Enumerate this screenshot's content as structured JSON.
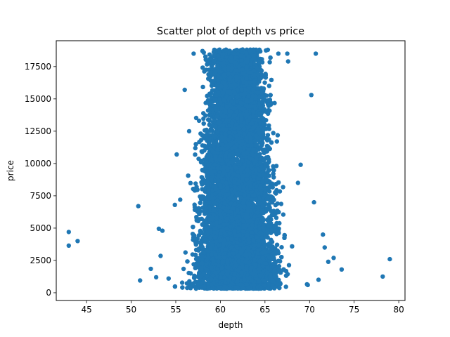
{
  "chart_data": {
    "type": "scatter",
    "title": "Scatter plot of depth vs price",
    "xlabel": "depth",
    "ylabel": "price",
    "xlim": [
      41.6,
      80.7
    ],
    "ylim": [
      -600,
      19500
    ],
    "xticks": [
      45,
      50,
      55,
      60,
      65,
      70,
      75,
      80
    ],
    "xtick_labels": [
      "45",
      "50",
      "55",
      "60",
      "65",
      "70",
      "75",
      "80"
    ],
    "yticks": [
      0,
      2500,
      5000,
      7500,
      10000,
      12500,
      15000,
      17500
    ],
    "ytick_labels": [
      "0",
      "2500",
      "5000",
      "7500",
      "10000",
      "12500",
      "15000",
      "17500"
    ],
    "grid": false,
    "marker_color": "#1f77b4",
    "outliers": [
      {
        "x": 43.0,
        "y": 4700
      },
      {
        "x": 43.0,
        "y": 3650
      },
      {
        "x": 44.0,
        "y": 4000
      },
      {
        "x": 50.8,
        "y": 6700
      },
      {
        "x": 51.0,
        "y": 950
      },
      {
        "x": 52.2,
        "y": 1850
      },
      {
        "x": 53.1,
        "y": 4950
      },
      {
        "x": 53.5,
        "y": 4800
      },
      {
        "x": 53.3,
        "y": 2850
      },
      {
        "x": 52.8,
        "y": 1200
      },
      {
        "x": 54.2,
        "y": 1100
      },
      {
        "x": 55.1,
        "y": 10700
      },
      {
        "x": 54.9,
        "y": 6800
      },
      {
        "x": 55.5,
        "y": 7200
      },
      {
        "x": 56.0,
        "y": 15700
      },
      {
        "x": 56.5,
        "y": 12500
      },
      {
        "x": 57.0,
        "y": 18500
      },
      {
        "x": 58.0,
        "y": 18700
      },
      {
        "x": 66.5,
        "y": 18500
      },
      {
        "x": 67.5,
        "y": 18500
      },
      {
        "x": 67.6,
        "y": 17900
      },
      {
        "x": 70.7,
        "y": 18500
      },
      {
        "x": 70.2,
        "y": 15300
      },
      {
        "x": 69.0,
        "y": 9900
      },
      {
        "x": 68.7,
        "y": 8500
      },
      {
        "x": 70.5,
        "y": 7000
      },
      {
        "x": 71.5,
        "y": 4500
      },
      {
        "x": 71.7,
        "y": 3500
      },
      {
        "x": 72.1,
        "y": 2400
      },
      {
        "x": 72.7,
        "y": 2700
      },
      {
        "x": 73.6,
        "y": 1800
      },
      {
        "x": 71.0,
        "y": 1000
      },
      {
        "x": 69.8,
        "y": 600
      },
      {
        "x": 78.2,
        "y": 1250
      },
      {
        "x": 79.0,
        "y": 2600
      }
    ],
    "bulk": {
      "x_center": 61.8,
      "x_spread_low_price": 4.8,
      "x_spread_high_price": 2.9,
      "y_range": [
        326,
        18823
      ],
      "points": 9000
    }
  }
}
